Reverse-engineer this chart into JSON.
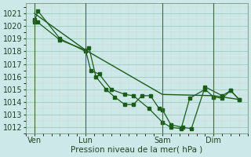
{
  "background_color": "#cce8e8",
  "grid_color_major": "#99ccbb",
  "grid_color_minor": "#ccddcc",
  "line_color": "#1a5c1a",
  "xlabel": "Pression niveau de la mer( hPa )",
  "ylim": [
    1011.5,
    1021.8
  ],
  "yticks": [
    1012,
    1013,
    1014,
    1015,
    1016,
    1017,
    1018,
    1019,
    1020,
    1021
  ],
  "xtick_labels": [
    "Ven",
    "Lun",
    "Sam",
    "Dim"
  ],
  "xtick_positions": [
    0.5,
    3.5,
    8.0,
    11.0
  ],
  "xlim": [
    0.0,
    13.0
  ],
  "vline_positions": [
    0.5,
    3.5,
    8.0,
    11.0
  ],
  "vline_color": "#446644",
  "series1_x": [
    0.5,
    0.7,
    2.0,
    3.5,
    3.7,
    4.1,
    4.7,
    5.2,
    5.8,
    6.3,
    6.8,
    7.3,
    7.8,
    8.0,
    8.5,
    9.2,
    9.7,
    10.5,
    11.5,
    12.0,
    12.5
  ],
  "series1_y": [
    1020.3,
    1021.2,
    1019.0,
    1018.0,
    1018.3,
    1016.0,
    1015.0,
    1014.4,
    1013.8,
    1013.8,
    1014.5,
    1014.5,
    1013.5,
    1013.4,
    1012.2,
    1012.0,
    1011.9,
    1015.2,
    1014.5,
    1014.9,
    1014.2
  ],
  "series2_x": [
    0.5,
    0.7,
    2.0,
    3.5,
    3.8,
    4.3,
    5.0,
    5.8,
    6.3,
    7.2,
    8.0,
    8.5,
    9.1,
    9.6,
    10.5,
    11.0,
    11.5,
    12.0,
    12.5
  ],
  "series2_y": [
    1020.5,
    1020.3,
    1018.9,
    1018.1,
    1016.5,
    1016.2,
    1015.0,
    1014.6,
    1014.5,
    1013.5,
    1012.4,
    1012.0,
    1011.9,
    1014.3,
    1015.0,
    1014.4,
    1014.3,
    1014.9,
    1014.2
  ],
  "series3_x": [
    0.5,
    3.5,
    8.0,
    11.0,
    12.5
  ],
  "series3_y": [
    1021.0,
    1018.1,
    1014.6,
    1014.5,
    1014.2
  ]
}
